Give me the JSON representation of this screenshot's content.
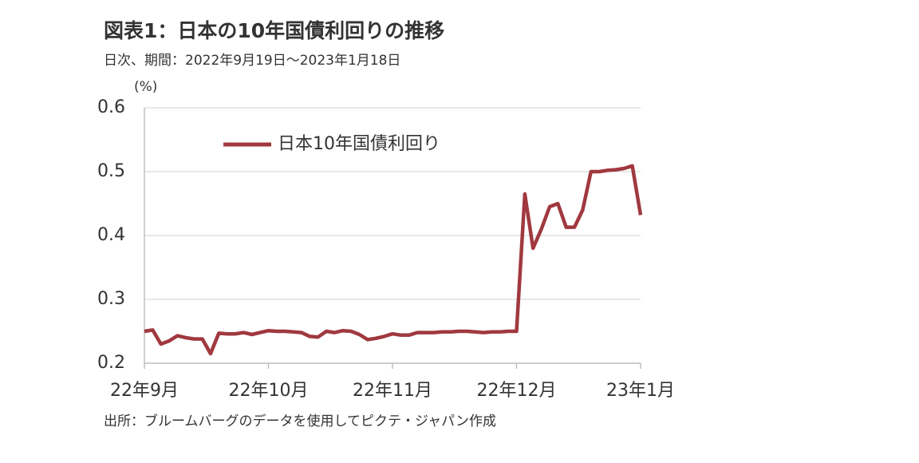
{
  "chart_data": {
    "type": "line",
    "title": "図表1：日本の10年国債利回りの推移",
    "subtitle": "日次、期間：2022年9月19日～2023年1月18日",
    "y_label": "(%)",
    "source": "出所：ブルームバーグのデータを使用してピクテ・ジャパン作成",
    "categories": [
      "22年9月",
      null,
      null,
      null,
      null,
      null,
      null,
      null,
      null,
      null,
      null,
      null,
      null,
      null,
      null,
      "22年10月",
      null,
      null,
      null,
      null,
      null,
      null,
      null,
      null,
      null,
      null,
      null,
      null,
      null,
      null,
      "22年11月",
      null,
      null,
      null,
      null,
      null,
      null,
      null,
      null,
      null,
      null,
      null,
      null,
      null,
      null,
      "22年12月",
      null,
      null,
      null,
      null,
      null,
      null,
      null,
      null,
      null,
      null,
      null,
      null,
      null,
      null,
      "23年1月"
    ],
    "series": [
      {
        "name": "日本10年国債利回り",
        "color": "#a0393f",
        "values": [
          0.25,
          0.252,
          0.23,
          0.235,
          0.243,
          0.24,
          0.238,
          0.238,
          0.215,
          0.247,
          0.246,
          0.246,
          0.248,
          0.245,
          0.248,
          0.251,
          0.25,
          0.25,
          0.249,
          0.248,
          0.242,
          0.241,
          0.25,
          0.248,
          0.251,
          0.25,
          0.245,
          0.237,
          0.239,
          0.242,
          0.246,
          0.244,
          0.244,
          0.248,
          0.248,
          0.248,
          0.249,
          0.249,
          0.25,
          0.25,
          0.249,
          0.248,
          0.249,
          0.249,
          0.25,
          0.25,
          0.465,
          0.38,
          0.41,
          0.445,
          0.45,
          0.413,
          0.413,
          0.44,
          0.5,
          0.5,
          0.502,
          0.503,
          0.505,
          0.509,
          0.432
        ]
      }
    ],
    "ylim": [
      0.2,
      0.6
    ],
    "yticks": [
      0.2,
      0.3,
      0.4,
      0.5,
      0.6
    ],
    "grid": true,
    "legend": "top"
  }
}
